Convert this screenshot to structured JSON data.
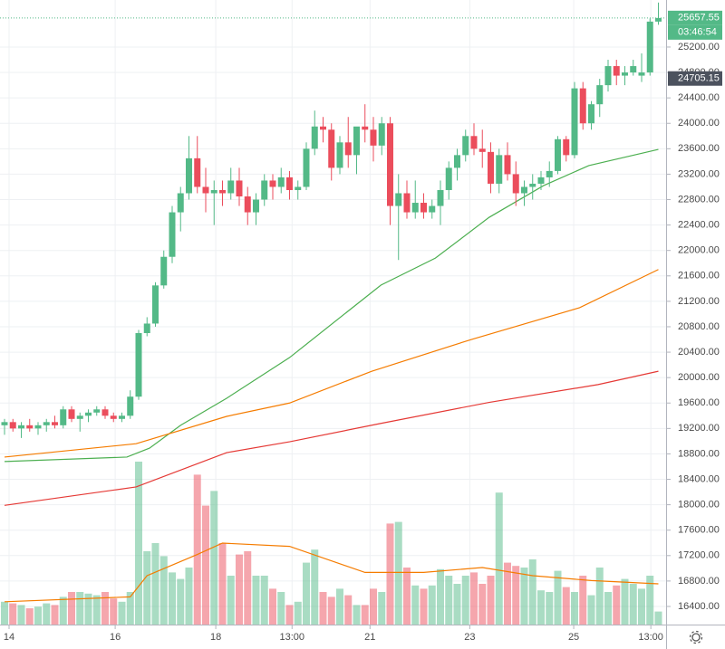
{
  "chart_data": {
    "type": "candlestick",
    "up_color": "#53b987",
    "down_color": "#eb4d5c",
    "ylim": [
      16115,
      25940
    ],
    "xlim": [
      -0.54,
      78.92
    ],
    "grid": true,
    "yticks": [
      {
        "value": 16400,
        "label": "16400.00"
      },
      {
        "value": 16800,
        "label": "16800.00"
      },
      {
        "value": 17200,
        "label": "17200.00"
      },
      {
        "value": 17600,
        "label": "17600.00"
      },
      {
        "value": 18000,
        "label": "18000.00"
      },
      {
        "value": 18400,
        "label": "18400.00"
      },
      {
        "value": 18800,
        "label": "18800.00"
      },
      {
        "value": 19200,
        "label": "19200.00"
      },
      {
        "value": 19600,
        "label": "19600.00"
      },
      {
        "value": 20000,
        "label": "20000.00"
      },
      {
        "value": 20400,
        "label": "20400.00"
      },
      {
        "value": 20800,
        "label": "20800.00"
      },
      {
        "value": 21200,
        "label": "21200.00"
      },
      {
        "value": 21600,
        "label": "21600.00"
      },
      {
        "value": 22000,
        "label": "22000.00"
      },
      {
        "value": 22400,
        "label": "22400.00"
      },
      {
        "value": 22800,
        "label": "22800.00"
      },
      {
        "value": 23200,
        "label": "23200.00"
      },
      {
        "value": 23600,
        "label": "23600.00"
      },
      {
        "value": 24000,
        "label": "24000.00"
      },
      {
        "value": 24400,
        "label": "24400.00"
      },
      {
        "value": 24800,
        "label": "24800.00"
      },
      {
        "value": 25200,
        "label": "25200.00"
      }
    ],
    "xticks": [
      {
        "value": 0.54,
        "label": "14"
      },
      {
        "value": 13.2,
        "label": "16"
      },
      {
        "value": 25.2,
        "label": "18"
      },
      {
        "value": 34.3,
        "label": "13:00"
      },
      {
        "value": 43.6,
        "label": "21"
      },
      {
        "value": 55.5,
        "label": "23"
      },
      {
        "value": 67.9,
        "label": "25"
      },
      {
        "value": 77.1,
        "label": "13:00"
      }
    ],
    "ohlc": [
      [
        19250,
        19350,
        19100,
        19300
      ],
      [
        19300,
        19350,
        19150,
        19200
      ],
      [
        19200,
        19300,
        19050,
        19250
      ],
      [
        19250,
        19350,
        19150,
        19200
      ],
      [
        19200,
        19300,
        19100,
        19250
      ],
      [
        19250,
        19350,
        19150,
        19300
      ],
      [
        19300,
        19400,
        19200,
        19250
      ],
      [
        19250,
        19550,
        19200,
        19500
      ],
      [
        19500,
        19550,
        19300,
        19350
      ],
      [
        19350,
        19450,
        19150,
        19400
      ],
      [
        19400,
        19500,
        19300,
        19450
      ],
      [
        19450,
        19550,
        19400,
        19500
      ],
      [
        19500,
        19550,
        19350,
        19400
      ],
      [
        19400,
        19450,
        19300,
        19350
      ],
      [
        19350,
        19450,
        19300,
        19400
      ],
      [
        19400,
        19800,
        19350,
        19700
      ],
      [
        19700,
        20750,
        19650,
        20700
      ],
      [
        20700,
        20950,
        20650,
        20850
      ],
      [
        20850,
        21500,
        20800,
        21450
      ],
      [
        21450,
        22000,
        21400,
        21900
      ],
      [
        21900,
        22700,
        21800,
        22600
      ],
      [
        22600,
        23000,
        22300,
        22900
      ],
      [
        22900,
        23800,
        22800,
        23450
      ],
      [
        23450,
        23800,
        22900,
        23000
      ],
      [
        23000,
        23300,
        22600,
        22900
      ],
      [
        22900,
        23100,
        22400,
        22950
      ],
      [
        22950,
        23100,
        22700,
        22900
      ],
      [
        22900,
        23300,
        22800,
        23100
      ],
      [
        23100,
        23300,
        22700,
        22850
      ],
      [
        22850,
        23000,
        22400,
        22600
      ],
      [
        22600,
        22900,
        22400,
        22800
      ],
      [
        22800,
        23200,
        22700,
        23100
      ],
      [
        23100,
        23200,
        22800,
        23000
      ],
      [
        23000,
        23300,
        22900,
        23150
      ],
      [
        23150,
        23250,
        22800,
        22950
      ],
      [
        22950,
        23100,
        22800,
        23000
      ],
      [
        23000,
        23700,
        22950,
        23600
      ],
      [
        23600,
        24200,
        23500,
        23950
      ],
      [
        23950,
        24100,
        23700,
        23900
      ],
      [
        23900,
        24000,
        23100,
        23300
      ],
      [
        23300,
        23800,
        23200,
        23700
      ],
      [
        23700,
        24100,
        23300,
        23500
      ],
      [
        23500,
        23900,
        23200,
        23950
      ],
      [
        23950,
        24300,
        23700,
        23900
      ],
      [
        23900,
        24100,
        23400,
        23650
      ],
      [
        23650,
        24100,
        23500,
        24000
      ],
      [
        24000,
        24100,
        22400,
        22700
      ],
      [
        22700,
        23200,
        21850,
        22900
      ],
      [
        22900,
        23100,
        22500,
        22600
      ],
      [
        22600,
        23100,
        22500,
        22750
      ],
      [
        22750,
        22900,
        22500,
        22600
      ],
      [
        22600,
        22800,
        22500,
        22700
      ],
      [
        22700,
        23100,
        22400,
        22950
      ],
      [
        22950,
        23400,
        22800,
        23300
      ],
      [
        23300,
        23600,
        23100,
        23500
      ],
      [
        23500,
        23900,
        23400,
        23800
      ],
      [
        23800,
        24000,
        23500,
        23600
      ],
      [
        23600,
        23900,
        23300,
        23550
      ],
      [
        23550,
        23700,
        22900,
        23050
      ],
      [
        23050,
        23600,
        22900,
        23500
      ],
      [
        23500,
        23700,
        23100,
        23200
      ],
      [
        23200,
        23400,
        22700,
        22900
      ],
      [
        22900,
        23100,
        22700,
        23000
      ],
      [
        23000,
        23200,
        22800,
        23050
      ],
      [
        23050,
        23250,
        22950,
        23150
      ],
      [
        23150,
        23400,
        23000,
        23250
      ],
      [
        23250,
        23800,
        23200,
        23750
      ],
      [
        23750,
        23800,
        23400,
        23500
      ],
      [
        23500,
        24650,
        23450,
        24550
      ],
      [
        24550,
        24650,
        23900,
        24000
      ],
      [
        24000,
        24350,
        23900,
        24300
      ],
      [
        24300,
        24700,
        24100,
        24600
      ],
      [
        24600,
        25000,
        24500,
        24900
      ],
      [
        24900,
        25000,
        24600,
        24750
      ],
      [
        24750,
        24900,
        24600,
        24800
      ],
      [
        24800,
        25000,
        24750,
        24900
      ],
      [
        24750,
        25100,
        24650,
        24800
      ],
      [
        24800,
        25650,
        24750,
        25600
      ],
      [
        25600,
        25900,
        25550,
        25657.55
      ]
    ],
    "lines": [
      {
        "color": "#4caf50",
        "x": [
          0,
          14.6,
          17.3,
          21,
          26.5,
          34,
          44.9,
          51.4,
          57.8,
          64.3,
          69.7,
          78
        ],
        "values": [
          18680,
          18750,
          18890,
          19250,
          19675,
          20315,
          21455,
          21880,
          22520,
          23020,
          23335,
          23590
        ]
      },
      {
        "color": "#f57c00",
        "x": [
          0,
          15.7,
          26.5,
          34,
          43.8,
          55.7,
          68.6,
          78
        ],
        "values": [
          18750,
          18960,
          19390,
          19600,
          20100,
          20600,
          21100,
          21700
        ]
      },
      {
        "color": "#e53935",
        "x": [
          0,
          15.7,
          26.5,
          34,
          44.9,
          57.8,
          70.8,
          78
        ],
        "values": [
          17990,
          18280,
          18820,
          18990,
          19280,
          19610,
          19890,
          20100
        ]
      }
    ],
    "volume_lim": [
      0,
      100
    ],
    "volume": [
      14,
      13,
      12,
      10,
      11,
      13,
      12,
      17,
      20,
      20,
      19,
      18,
      20,
      16,
      14,
      20,
      100,
      45,
      50,
      42,
      32,
      28,
      35,
      92,
      73,
      82,
      50,
      30,
      43,
      45,
      30,
      30,
      22,
      20,
      12,
      14,
      38,
      46,
      20,
      17,
      22,
      18,
      12,
      12,
      22,
      20,
      62,
      63,
      35,
      24,
      22,
      24,
      34,
      30,
      25,
      30,
      32,
      25,
      30,
      81,
      38,
      36,
      35,
      40,
      21,
      20,
      33,
      23,
      20,
      30,
      18,
      35,
      20,
      24,
      28,
      25,
      22,
      30,
      8
    ],
    "volume_ma": {
      "color": "#f57c00",
      "x": [
        0,
        15,
        17,
        23,
        26,
        34,
        43,
        50,
        57,
        63,
        70,
        78
      ],
      "values": [
        14,
        17,
        30,
        43,
        50,
        48,
        32,
        32,
        35,
        30,
        27,
        25
      ]
    },
    "last_price": 25657.55,
    "countdown": "03:46:54",
    "marker_price": 24705.15
  }
}
